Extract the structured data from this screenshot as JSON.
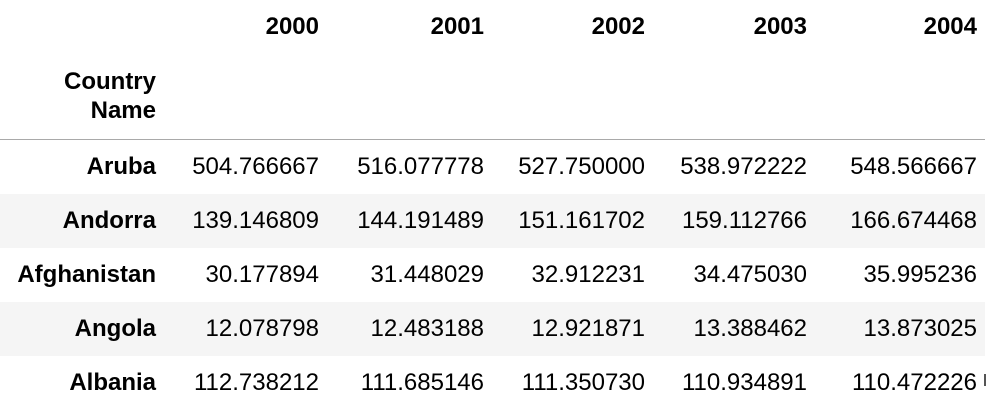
{
  "table": {
    "index_name": "Country Name",
    "columns": [
      "2000",
      "2001",
      "2002",
      "2003",
      "2004"
    ],
    "rows": [
      {
        "label": "Aruba",
        "values": [
          "504.766667",
          "516.077778",
          "527.750000",
          "538.972222",
          "548.566667"
        ]
      },
      {
        "label": "Andorra",
        "values": [
          "139.146809",
          "144.191489",
          "151.161702",
          "159.112766",
          "166.674468"
        ]
      },
      {
        "label": "Afghanistan",
        "values": [
          "30.177894",
          "31.448029",
          "32.912231",
          "34.475030",
          "35.995236"
        ]
      },
      {
        "label": "Angola",
        "values": [
          "12.078798",
          "12.483188",
          "12.921871",
          "13.388462",
          "13.873025"
        ]
      },
      {
        "label": "Albania",
        "values": [
          "112.738212",
          "111.685146",
          "111.350730",
          "110.934891",
          "110.472226"
        ]
      }
    ]
  }
}
